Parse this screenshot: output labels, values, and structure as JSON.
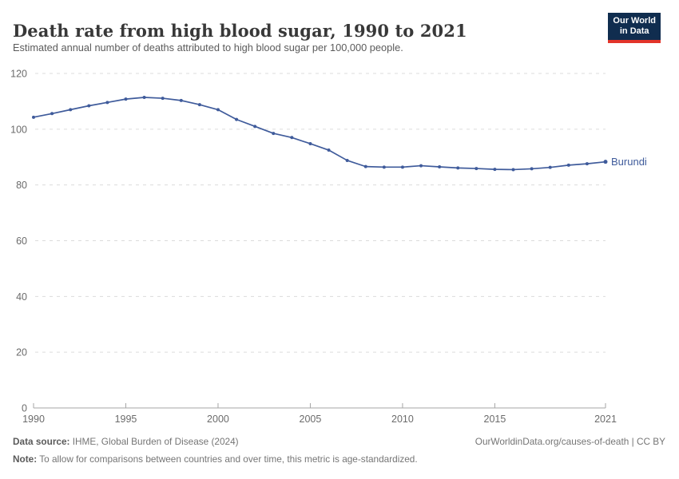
{
  "header": {
    "title": "Death rate from high blood sugar, 1990 to 2021",
    "subtitle": "Estimated annual number of deaths attributed to high blood sugar per 100,000 people.",
    "logo_line1": "Our World",
    "logo_line2": "in Data"
  },
  "chart_data": {
    "type": "line",
    "title": "Death rate from high blood sugar, 1990 to 2021",
    "xlabel": "",
    "ylabel": "",
    "xlim": [
      1990,
      2021
    ],
    "ylim": [
      0,
      120
    ],
    "x_ticks": [
      1990,
      1995,
      2000,
      2005,
      2010,
      2015,
      2021
    ],
    "y_ticks": [
      0,
      20,
      40,
      60,
      80,
      100,
      120
    ],
    "grid": "horizontal-dashed",
    "legend_position": "end-of-line-label",
    "series": [
      {
        "name": "Burundi",
        "color": "#3f5b9b",
        "x": [
          1990,
          1991,
          1992,
          1993,
          1994,
          1995,
          1996,
          1997,
          1998,
          1999,
          2000,
          2001,
          2002,
          2003,
          2004,
          2005,
          2006,
          2007,
          2008,
          2009,
          2010,
          2011,
          2012,
          2013,
          2014,
          2015,
          2016,
          2017,
          2018,
          2019,
          2020,
          2021
        ],
        "values": [
          104.3,
          105.6,
          107.0,
          108.4,
          109.6,
          110.8,
          111.4,
          111.1,
          110.3,
          108.8,
          107.0,
          103.5,
          101.0,
          98.5,
          97.0,
          94.8,
          92.5,
          88.8,
          86.6,
          86.4,
          86.4,
          86.9,
          86.5,
          86.1,
          85.9,
          85.6,
          85.5,
          85.8,
          86.3,
          87.1,
          87.6,
          88.3
        ]
      }
    ]
  },
  "footer": {
    "source_label": "Data source:",
    "source_text": " IHME, Global Burden of Disease (2024)",
    "license_text": "OurWorldinData.org/causes-of-death | CC BY",
    "note_label": "Note:",
    "note_text": " To allow for comparisons between countries and over time, this metric is age-standardized."
  },
  "colors": {
    "background": "#ffffff",
    "title": "#383838",
    "subtitle": "#5b5b5b",
    "axis_text": "#6b6b6b",
    "gridline": "#dcdcdc",
    "axis_line": "#a5a5a5",
    "footer_text": "#757575",
    "logo_bg": "#102d4f",
    "logo_stripe": "#e2342a"
  }
}
